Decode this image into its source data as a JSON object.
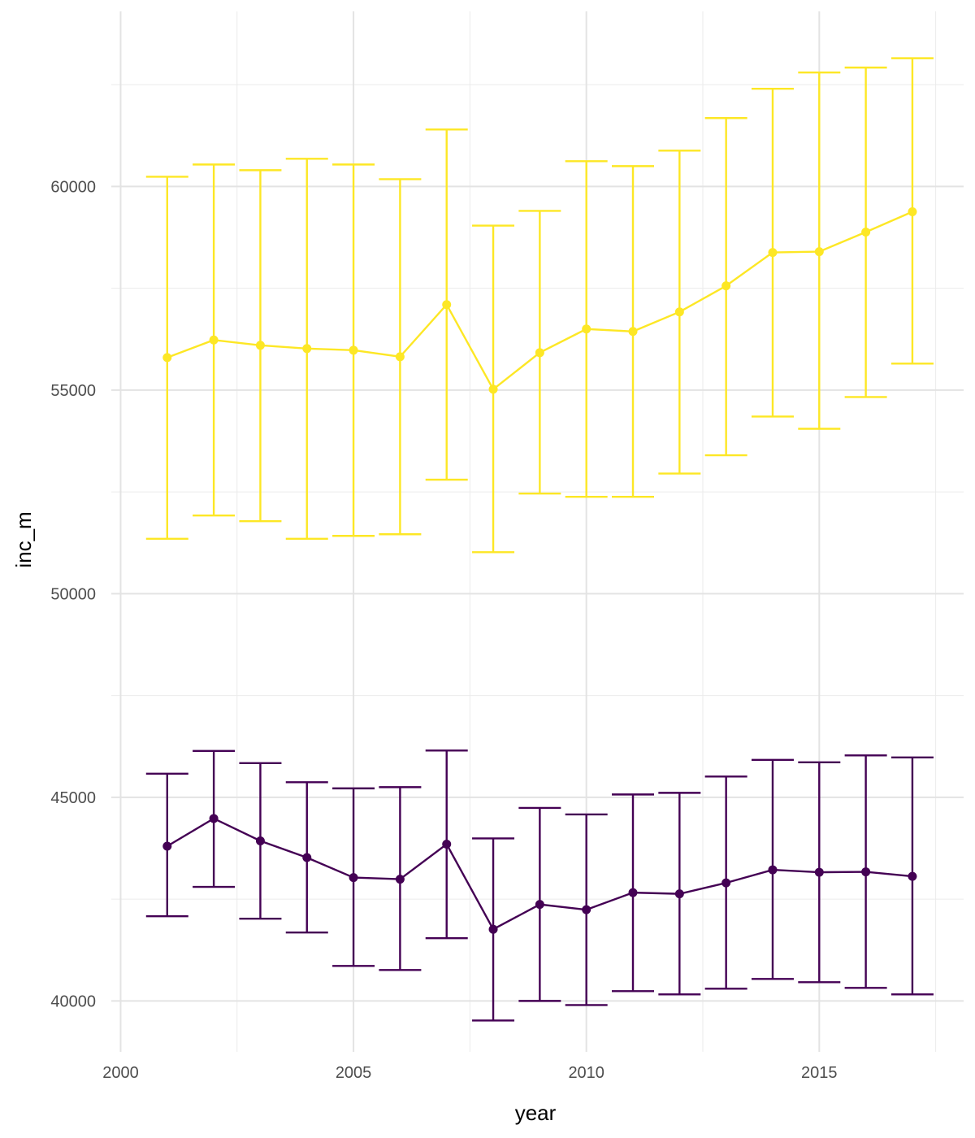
{
  "chart_data": {
    "type": "line",
    "xlabel": "year",
    "ylabel": "inc_m",
    "xlim": [
      1999.8,
      2018.1
    ],
    "ylim": [
      38750,
      64300
    ],
    "x_ticks": [
      2000,
      2005,
      2010,
      2015
    ],
    "x_tick_labels": [
      "2000",
      "2005",
      "2010",
      "2015"
    ],
    "x_minor_ticks": [
      2002.5,
      2007.5,
      2012.5,
      2017.5
    ],
    "y_ticks": [
      40000,
      45000,
      50000,
      55000,
      60000
    ],
    "y_tick_labels": [
      "40000",
      "45000",
      "50000",
      "55000",
      "60000"
    ],
    "y_minor_ticks": [
      42500,
      47500,
      52500,
      57500,
      62500
    ],
    "grid": true,
    "legend": "none",
    "x": [
      2001,
      2002,
      2003,
      2004,
      2005,
      2006,
      2007,
      2008,
      2009,
      2010,
      2011,
      2012,
      2013,
      2014,
      2015,
      2016,
      2017
    ],
    "series": [
      {
        "color": "#FDE725",
        "values": [
          55800,
          56230,
          56100,
          56020,
          55980,
          55820,
          57100,
          55020,
          55920,
          56500,
          56440,
          56920,
          57560,
          58380,
          58400,
          58880,
          59380
        ],
        "lower": [
          51350,
          51920,
          51780,
          51350,
          51420,
          51460,
          52800,
          51020,
          52460,
          52380,
          52380,
          52950,
          53400,
          54350,
          54050,
          54830,
          55650
        ],
        "upper": [
          60240,
          60540,
          60400,
          60680,
          60540,
          60180,
          61400,
          59040,
          59400,
          60620,
          60500,
          60880,
          61680,
          62400,
          62800,
          62920,
          63150
        ]
      },
      {
        "color": "#440154",
        "values": [
          43800,
          44480,
          43930,
          43520,
          43030,
          42990,
          43850,
          41760,
          42370,
          42240,
          42660,
          42630,
          42900,
          43220,
          43160,
          43170,
          43060
        ],
        "lower": [
          42080,
          42800,
          42020,
          41680,
          40860,
          40760,
          41540,
          39520,
          40000,
          39900,
          40240,
          40160,
          40300,
          40540,
          40460,
          40320,
          40160
        ],
        "upper": [
          45580,
          46140,
          45840,
          45370,
          45220,
          45250,
          46150,
          43990,
          44740,
          44580,
          45070,
          45110,
          45510,
          45920,
          45860,
          46030,
          45980
        ]
      }
    ]
  }
}
